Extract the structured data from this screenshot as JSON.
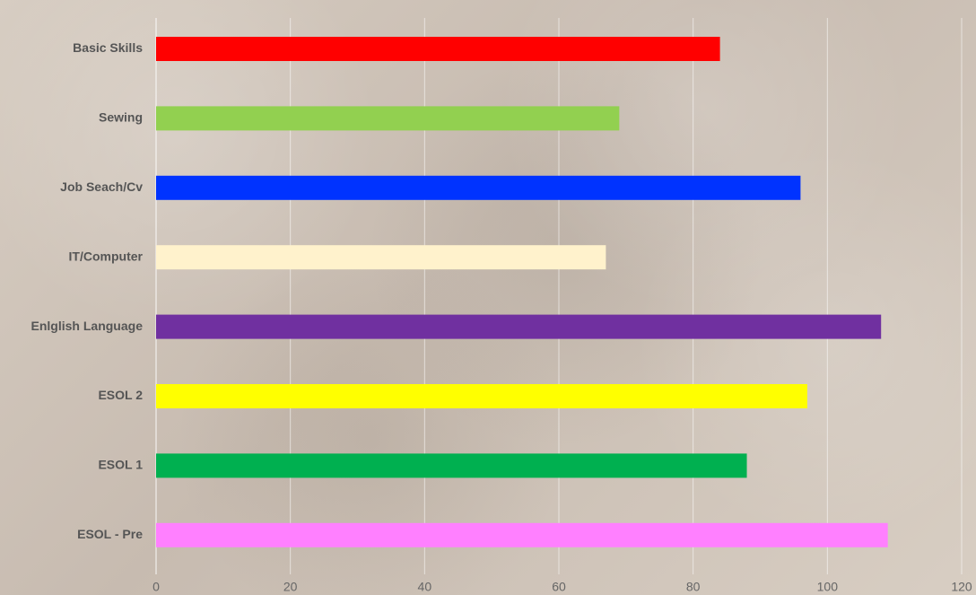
{
  "chart_data": {
    "type": "bar",
    "orientation": "horizontal",
    "categories": [
      "Basic Skills",
      "Sewing",
      "Job Seach/Cv",
      "IT/Computer",
      "Enlglish Language",
      "ESOL 2",
      "ESOL 1",
      "ESOL - Pre"
    ],
    "values": [
      84,
      69,
      96,
      67,
      108,
      97,
      88,
      109
    ],
    "colors": [
      "#ff0000",
      "#92d050",
      "#0033ff",
      "#fff2cc",
      "#7030a0",
      "#ffff00",
      "#00b050",
      "#ff80ff"
    ],
    "ticks": [
      0,
      20,
      40,
      60,
      80,
      100,
      120
    ],
    "xlim": [
      0,
      120
    ],
    "grid": true,
    "title": "",
    "xlabel": "",
    "ylabel": "",
    "legend": "none"
  }
}
